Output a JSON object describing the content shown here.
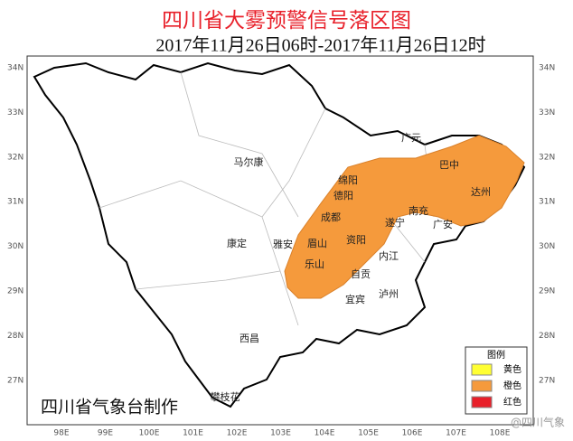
{
  "header": {
    "title": "四川省大雾预警信号落区图",
    "subtitle": "2017年11月26日06时-2017年11月26日12时"
  },
  "map": {
    "lat_labels": [
      "34N",
      "33N",
      "32N",
      "31N",
      "30N",
      "29N",
      "28N",
      "27N"
    ],
    "lon_labels": [
      "98E",
      "99E",
      "100E",
      "101E",
      "102E",
      "103E",
      "104E",
      "105E",
      "106E",
      "107E",
      "108E"
    ],
    "cities": [
      "马尔康",
      "广元",
      "巴中",
      "绵阳",
      "德阳",
      "达州",
      "成都",
      "南充",
      "遂宁",
      "广安",
      "康定",
      "雅安",
      "眉山",
      "资阳",
      "内江",
      "乐山",
      "自贡",
      "泸州",
      "宜宾",
      "西昌",
      "攀枝花"
    ]
  },
  "legend": {
    "title": "图例",
    "items": [
      "黄色",
      "橙色",
      "红色"
    ]
  },
  "footer": {
    "credit": "四川省气象台制作",
    "watermark": "@四川气象"
  }
}
